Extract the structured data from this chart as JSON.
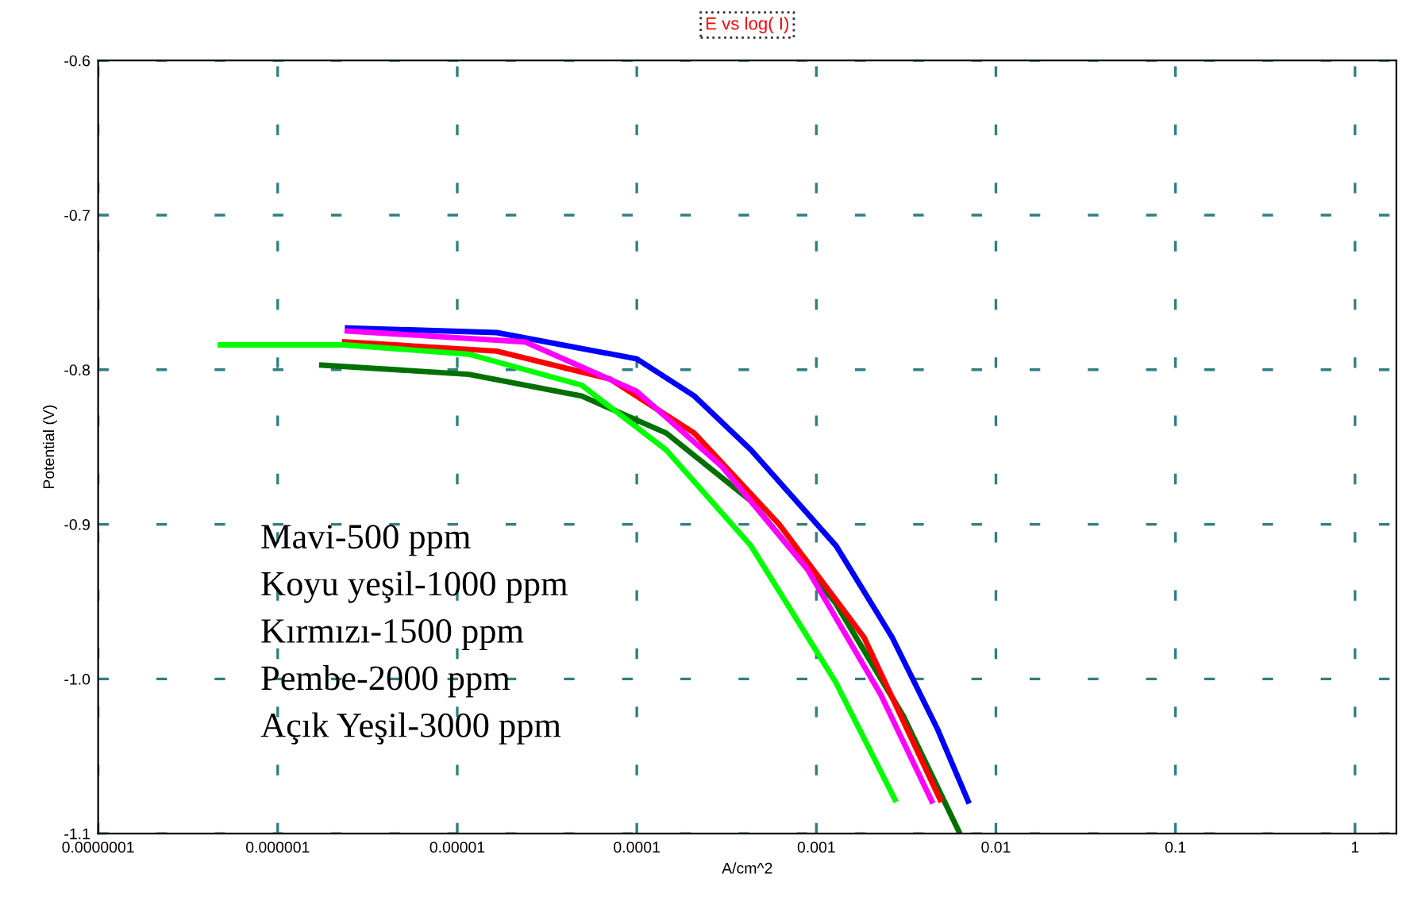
{
  "chart_data": {
    "type": "line",
    "title": "E vs log( I)",
    "xlabel": "A/cm^2",
    "ylabel": "Potential (V)",
    "log": "x",
    "xlim": [
      1e-07,
      1.7
    ],
    "xticks": [
      {
        "value": 1e-07,
        "label": "0.0000001"
      },
      {
        "value": 1e-06,
        "label": "0.000001"
      },
      {
        "value": 1e-05,
        "label": "0.00001"
      },
      {
        "value": 0.0001,
        "label": "0.0001"
      },
      {
        "value": 0.001,
        "label": "0.001"
      },
      {
        "value": 0.01,
        "label": "0.01"
      },
      {
        "value": 0.1,
        "label": "0.1"
      },
      {
        "value": 1,
        "label": "1"
      }
    ],
    "ylim": [
      -1.1,
      -0.6
    ],
    "yticks": [
      {
        "value": -1.1,
        "label": "-1.1"
      },
      {
        "value": -1.0,
        "label": "-1.0"
      },
      {
        "value": -0.9,
        "label": "-0.9"
      },
      {
        "value": -0.8,
        "label": "-0.8"
      },
      {
        "value": -0.7,
        "label": "-0.7"
      },
      {
        "value": -0.6,
        "label": "-0.6"
      }
    ],
    "grid": true,
    "line_style": "solid",
    "annotations": [
      "Mavi-500 ppm",
      "Koyu yeşil-1000 ppm",
      "Kırmızı-1500 ppm",
      "Pembe-2000 ppm",
      "Açık Yeşil-3000 ppm"
    ],
    "series": [
      {
        "color": "#0000ff",
        "x": [
          2.45e-06,
          1.66e-05,
          0.0001,
          0.000209,
          0.000433,
          0.00129,
          0.00264,
          0.00471,
          0.007
        ],
        "values": [
          -0.773,
          -0.776,
          -0.793,
          -0.817,
          -0.852,
          -0.914,
          -0.973,
          -1.032,
          -1.079
        ]
      },
      {
        "color": "#007000",
        "x": [
          1.76e-06,
          1.16e-05,
          4.93e-05,
          0.000146,
          0.000433,
          0.00128,
          0.00305,
          0.0063
        ],
        "values": [
          -0.797,
          -0.803,
          -0.817,
          -0.841,
          -0.885,
          -0.951,
          -1.024,
          -1.1
        ]
      },
      {
        "color": "#ff0000",
        "x": [
          2.36e-06,
          1.66e-05,
          7.08e-05,
          0.000209,
          0.000621,
          0.00184,
          0.00489
        ],
        "values": [
          -0.782,
          -0.788,
          -0.806,
          -0.841,
          -0.9,
          -0.973,
          -1.078
        ]
      },
      {
        "color": "#ff00ff",
        "x": [
          2.44e-06,
          2.38e-05,
          0.0001,
          0.0003,
          0.000891,
          0.00228,
          0.00439
        ],
        "values": [
          -0.775,
          -0.782,
          -0.814,
          -0.863,
          -0.929,
          -1.01,
          -1.079
        ]
      },
      {
        "color": "#00ff00",
        "x": [
          4.79e-07,
          2.36e-06,
          1.16e-05,
          4.93e-05,
          0.000146,
          0.000433,
          0.00128,
          0.00274
        ],
        "values": [
          -0.784,
          -0.784,
          -0.79,
          -0.81,
          -0.852,
          -0.914,
          -1.002,
          -1.078
        ]
      }
    ]
  }
}
